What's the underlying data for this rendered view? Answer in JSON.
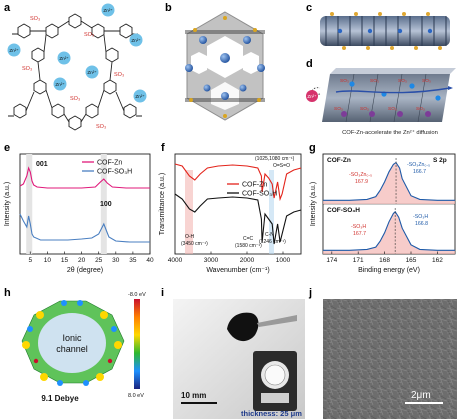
{
  "figure": {
    "panel_labels": [
      "a",
      "b",
      "c",
      "d",
      "e",
      "f",
      "g",
      "h",
      "i",
      "j"
    ],
    "a": {
      "zn_ions": [
        "Zn²⁺",
        "Zn²⁺",
        "Zn²⁺",
        "Zn²⁺",
        "Zn²⁺",
        "Zn²⁺",
        "Zn²⁺"
      ],
      "so3_labels": [
        "SO₃",
        "SO₃",
        "SO₃",
        "SO₃",
        "SO₃",
        "SO₃"
      ]
    },
    "d": {
      "so3_labels": [
        "SO₃",
        "SO₃",
        "SO₃",
        "SO₃",
        "SO₃",
        "SO₃",
        "SO₃",
        "SO₃"
      ],
      "zn_ion": "Zn²⁺",
      "caption": "COF-Zn-accelerate the Zn²⁺ diffusion"
    },
    "h": {
      "center_label_1": "Ionic",
      "center_label_2": "channel",
      "dipole": "9.1 Debye",
      "scale_top": "-8.0 eV",
      "scale_bottom": "8.0 eV",
      "colors": [
        "#c8102e",
        "#ff7f00",
        "#ffd700",
        "#2eb82e",
        "#1e90ff",
        "#1a237e"
      ]
    },
    "i": {
      "scale_bar": "10 mm",
      "thickness_label": "thickness: 25 μm"
    },
    "j": {
      "scale_bar": "2μm"
    }
  },
  "chart_data": [
    {
      "panel": "e",
      "type": "line",
      "xlabel": "2θ (degree)",
      "ylabel": "Intensity (a.u.)",
      "xlim": [
        2,
        40
      ],
      "x_ticks": [
        "5",
        "10",
        "15",
        "20",
        "25",
        "30",
        "35",
        "40"
      ],
      "peak_labels": [
        "001",
        "100"
      ],
      "peak_positions": [
        4.7,
        26.5
      ],
      "series": [
        {
          "name": "COF-Zn",
          "color": "#e0197a",
          "x": [
            2,
            3,
            4,
            4.5,
            5,
            5.5,
            6,
            7,
            10,
            15,
            20,
            24,
            25.5,
            26.5,
            27.5,
            29,
            33,
            37,
            40
          ],
          "y": [
            0.68,
            0.7,
            0.78,
            0.86,
            0.82,
            0.73,
            0.69,
            0.67,
            0.66,
            0.66,
            0.66,
            0.67,
            0.72,
            0.75,
            0.71,
            0.67,
            0.66,
            0.66,
            0.66
          ]
        },
        {
          "name": "COF-SO₃H",
          "color": "#4a7fc1",
          "x": [
            2,
            3,
            4,
            4.5,
            5,
            5.5,
            6,
            8,
            12,
            16,
            20,
            23,
            25,
            26.5,
            28,
            30,
            34,
            38,
            40
          ],
          "y": [
            0.4,
            0.33,
            0.27,
            0.38,
            0.3,
            0.2,
            0.17,
            0.14,
            0.14,
            0.14,
            0.15,
            0.16,
            0.2,
            0.3,
            0.17,
            0.13,
            0.12,
            0.12,
            0.12
          ]
        }
      ],
      "ylim": [
        0,
        1
      ]
    },
    {
      "panel": "f",
      "type": "line",
      "xlabel": "Wavenumber (cm⁻¹)",
      "ylabel": "Transmittance (a.u.)",
      "xlim": [
        4000,
        500
      ],
      "x_ticks": [
        "4000",
        "3000",
        "2000",
        "1000"
      ],
      "annotations": [
        "(1025,1080 cm⁻¹)",
        "O=S=O",
        "O-H",
        "(3450 cm⁻¹)",
        "C=C",
        "(1580 cm⁻¹)",
        "C-N",
        "(1246 cm⁻¹)"
      ],
      "series": [
        {
          "name": "COF-Zn",
          "color": "#e3241b",
          "x": [
            4000,
            3800,
            3600,
            3450,
            3300,
            3100,
            2800,
            2400,
            2000,
            1700,
            1600,
            1580,
            1500,
            1400,
            1300,
            1246,
            1150,
            1080,
            1025,
            900,
            700,
            500
          ],
          "y": [
            0.9,
            0.88,
            0.78,
            0.74,
            0.8,
            0.86,
            0.88,
            0.89,
            0.88,
            0.86,
            0.78,
            0.62,
            0.8,
            0.76,
            0.7,
            0.56,
            0.72,
            0.55,
            0.6,
            0.8,
            0.84,
            0.86
          ]
        },
        {
          "name": "COF-SO₃H",
          "color": "#111111",
          "x": [
            4000,
            3800,
            3600,
            3450,
            3300,
            3100,
            2800,
            2400,
            2000,
            1700,
            1600,
            1580,
            1500,
            1400,
            1300,
            1246,
            1150,
            1080,
            1025,
            900,
            700,
            500
          ],
          "y": [
            0.6,
            0.55,
            0.45,
            0.42,
            0.48,
            0.55,
            0.56,
            0.57,
            0.56,
            0.54,
            0.35,
            0.12,
            0.4,
            0.35,
            0.3,
            0.1,
            0.3,
            0.12,
            0.2,
            0.38,
            0.42,
            0.44
          ]
        }
      ],
      "ylim": [
        0,
        1
      ]
    },
    {
      "panel": "g",
      "type": "line",
      "xlabel": "Binding energy (eV)",
      "ylabel": "Intensity (a.u.)",
      "xlim": [
        175,
        160
      ],
      "x_ticks": [
        "174",
        "171",
        "168",
        "165",
        "162"
      ],
      "subplots": [
        {
          "name": "COF-Zn",
          "region": "S 2p",
          "annotations": [
            "-SO₃Zn₀.₅",
            "166.7",
            "-SO₃Zn₀.₅",
            "167.9"
          ],
          "x": [
            175,
            172,
            170,
            169,
            168.5,
            168,
            167.5,
            167,
            166.7,
            166.3,
            166,
            165,
            164,
            162,
            160
          ],
          "y": [
            0.08,
            0.08,
            0.1,
            0.16,
            0.3,
            0.48,
            0.7,
            0.86,
            0.9,
            0.78,
            0.55,
            0.18,
            0.1,
            0.08,
            0.08
          ]
        },
        {
          "name": "COF-SO₃H",
          "region": "",
          "annotations": [
            "-SO₃H",
            "166.8",
            "-SO₃H",
            "167.7"
          ],
          "x": [
            175,
            172,
            170,
            169,
            168.5,
            168,
            167.5,
            167,
            166.8,
            166.4,
            166,
            165,
            164,
            162,
            160
          ],
          "y": [
            0.08,
            0.08,
            0.1,
            0.15,
            0.28,
            0.46,
            0.7,
            0.88,
            0.92,
            0.8,
            0.56,
            0.2,
            0.1,
            0.08,
            0.08
          ]
        }
      ]
    }
  ]
}
